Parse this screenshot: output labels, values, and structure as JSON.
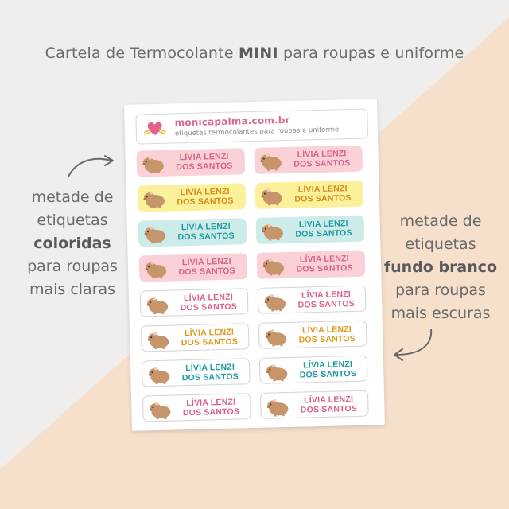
{
  "headline": {
    "prefix": "Cartela de Termocolante ",
    "strong": "MINI",
    "suffix": " para roupas e uniforme"
  },
  "left_note": {
    "line1": "metade de",
    "line2": "etiquetas",
    "line3_strong": "coloridas",
    "line4": "para roupas",
    "line5": "mais claras"
  },
  "right_note": {
    "line1": "metade de",
    "line2": "etiquetas",
    "line3_strong": "fundo branco",
    "line4": "para roupas",
    "line5": "mais escuras"
  },
  "sheet": {
    "brand_site": "monicapalma.com.br",
    "brand_tagline": "etiquetas termocolantes para roupas e uniforme"
  },
  "labels": [
    {
      "line1": "LÍVIA LENZI",
      "line2": "DOS SANTOS",
      "bg": "#f9d1d6",
      "text_color": "#d9608a"
    },
    {
      "line1": "LÍVIA LENZI",
      "line2": "DOS SANTOS",
      "bg": "#f9d1d6",
      "text_color": "#d9608a"
    },
    {
      "line1": "LÍVIA LENZI",
      "line2": "DOS SANTOS",
      "bg": "#fbf19a",
      "text_color": "#d58b1c"
    },
    {
      "line1": "LÍVIA LENZI",
      "line2": "DOS SANTOS",
      "bg": "#fbf19a",
      "text_color": "#d58b1c"
    },
    {
      "line1": "LÍVIA LENZI",
      "line2": "DOS SANTOS",
      "bg": "#cdebe8",
      "text_color": "#1e9aa0"
    },
    {
      "line1": "LÍVIA LENZI",
      "line2": "DOS SANTOS",
      "bg": "#cdebe8",
      "text_color": "#1e9aa0"
    },
    {
      "line1": "LÍVIA LENZI",
      "line2": "DOS SANTOS",
      "bg": "#f9d1d6",
      "text_color": "#d9608a"
    },
    {
      "line1": "LÍVIA LENZI",
      "line2": "DOS SANTOS",
      "bg": "#f9d1d6",
      "text_color": "#d9608a"
    },
    {
      "line1": "LÍVIA LENZI",
      "line2": "DOS SANTOS",
      "bg": "#ffffff",
      "text_color": "#d9608a"
    },
    {
      "line1": "LÍVIA LENZI",
      "line2": "DOS SANTOS",
      "bg": "#ffffff",
      "text_color": "#d9608a"
    },
    {
      "line1": "LÍVIA LENZI",
      "line2": "DOS SANTOS",
      "bg": "#ffffff",
      "text_color": "#e09a1e"
    },
    {
      "line1": "LÍVIA LENZI",
      "line2": "DOS SANTOS",
      "bg": "#ffffff",
      "text_color": "#e09a1e"
    },
    {
      "line1": "LÍVIA LENZI",
      "line2": "DOS SANTOS",
      "bg": "#ffffff",
      "text_color": "#1e9aa0"
    },
    {
      "line1": "LÍVIA LENZI",
      "line2": "DOS SANTOS",
      "bg": "#ffffff",
      "text_color": "#1e9aa0"
    },
    {
      "line1": "LÍVIA LENZI",
      "line2": "DOS SANTOS",
      "bg": "#ffffff",
      "text_color": "#d9608a"
    },
    {
      "line1": "LÍVIA LENZI",
      "line2": "DOS SANTOS",
      "bg": "#ffffff",
      "text_color": "#d9608a"
    }
  ],
  "colors": {
    "background_light": "#efeeec",
    "background_peach": "#f6e0cc",
    "capybara": "#c7956a"
  }
}
